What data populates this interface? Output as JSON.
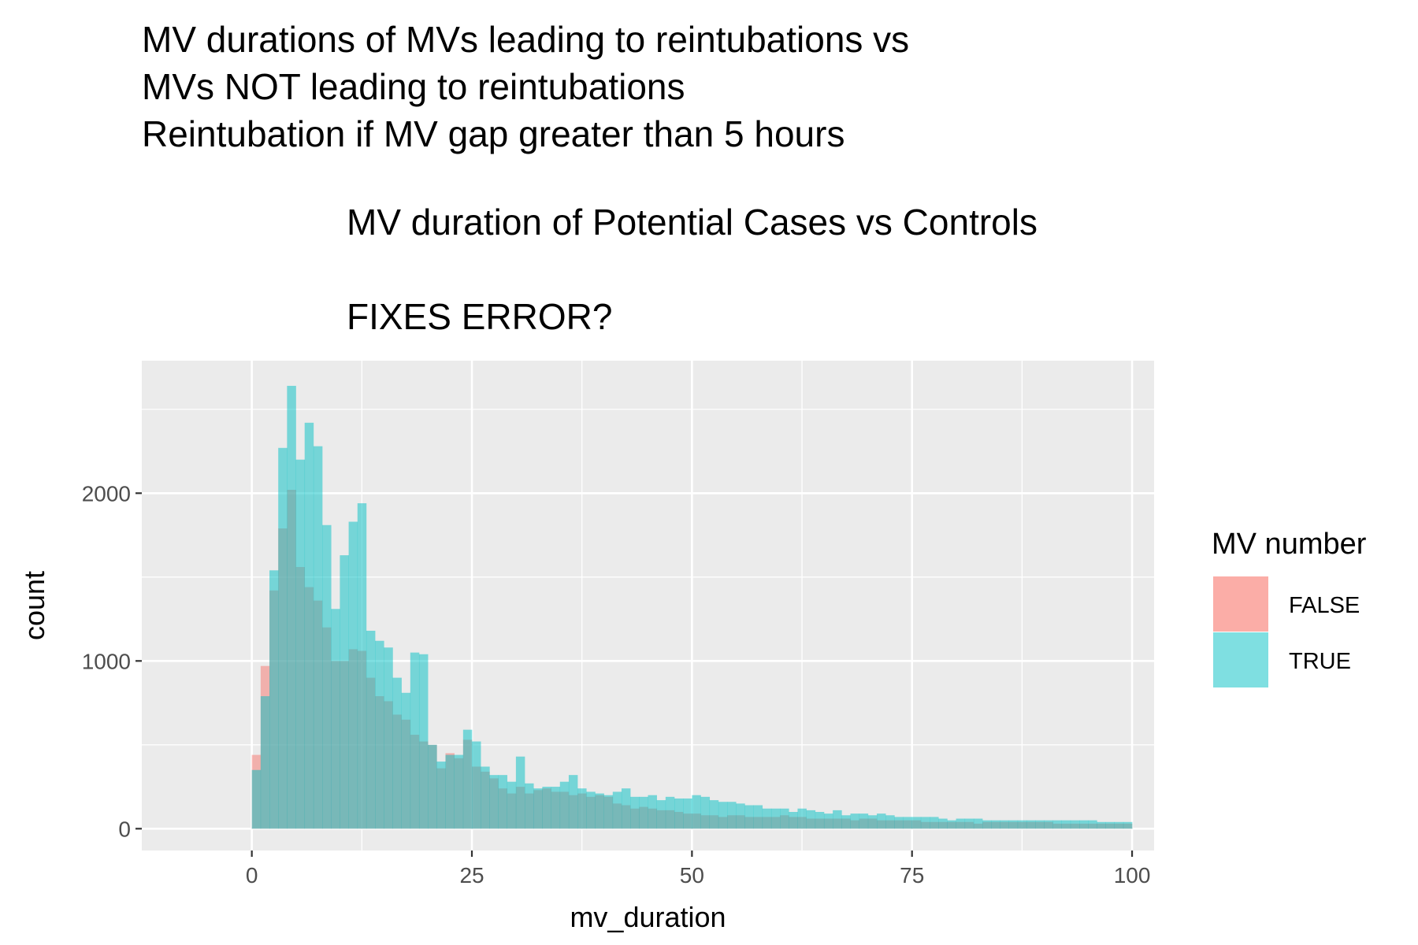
{
  "chart_data": {
    "type": "bar",
    "title_lines": [
      "MV durations of MVs leading to reintubations vs",
      "MVs NOT leading to reintubations",
      "Reintubation if MV gap greater than 5 hours"
    ],
    "subtitle_lines": [
      "MV duration of Potential Cases vs Controls",
      "",
      "FIXES ERROR?"
    ],
    "xlabel": "mv_duration",
    "ylabel": "count",
    "xlim": [
      -12.5,
      102.5
    ],
    "ylim": [
      -130,
      2790
    ],
    "x_ticks": [
      0,
      25,
      50,
      75,
      100
    ],
    "y_ticks": [
      0,
      1000,
      2000
    ],
    "bin_width": 1,
    "grid": true,
    "legend": {
      "title": "MV number",
      "position": "right",
      "entries": [
        "FALSE",
        "TRUE"
      ]
    },
    "colors": {
      "FALSE": "#F8766D",
      "TRUE": "#00BFC4",
      "panel": "#EBEBEB",
      "grid": "#FFFFFF",
      "overlap": "#7FAAA8"
    },
    "series": [
      {
        "name": "FALSE",
        "values": [
          440,
          970,
          1420,
          1790,
          2020,
          1560,
          1440,
          1360,
          1200,
          1000,
          1000,
          1070,
          1060,
          900,
          790,
          760,
          680,
          650,
          560,
          520,
          500,
          360,
          450,
          420,
          530,
          370,
          340,
          300,
          240,
          210,
          250,
          210,
          230,
          240,
          220,
          220,
          200,
          210,
          190,
          200,
          190,
          150,
          140,
          120,
          130,
          120,
          110,
          110,
          100,
          90,
          90,
          80,
          80,
          70,
          80,
          80,
          70,
          70,
          70,
          70,
          80,
          70,
          70,
          60,
          60,
          60,
          60,
          60,
          50,
          60,
          60,
          50,
          50,
          50,
          50,
          50,
          40,
          40,
          40,
          40,
          40,
          40,
          30,
          40,
          40,
          40,
          40,
          40,
          40,
          40,
          40,
          30,
          30,
          30,
          30,
          30,
          30,
          30,
          30,
          30
        ]
      },
      {
        "name": "TRUE",
        "values": [
          350,
          790,
          1540,
          2270,
          2640,
          2200,
          2420,
          2280,
          1810,
          1310,
          1630,
          1830,
          1940,
          1180,
          1120,
          1080,
          900,
          810,
          1050,
          1040,
          500,
          400,
          440,
          440,
          590,
          520,
          370,
          320,
          320,
          280,
          430,
          270,
          240,
          250,
          250,
          280,
          320,
          240,
          220,
          210,
          200,
          220,
          240,
          190,
          190,
          200,
          170,
          190,
          180,
          180,
          200,
          190,
          170,
          160,
          160,
          150,
          140,
          140,
          120,
          120,
          120,
          100,
          120,
          110,
          100,
          90,
          110,
          80,
          90,
          90,
          80,
          90,
          80,
          70,
          70,
          70,
          70,
          70,
          60,
          50,
          60,
          60,
          60,
          50,
          50,
          50,
          50,
          50,
          50,
          50,
          50,
          50,
          50,
          50,
          50,
          50,
          40,
          40,
          40,
          40
        ]
      }
    ]
  }
}
